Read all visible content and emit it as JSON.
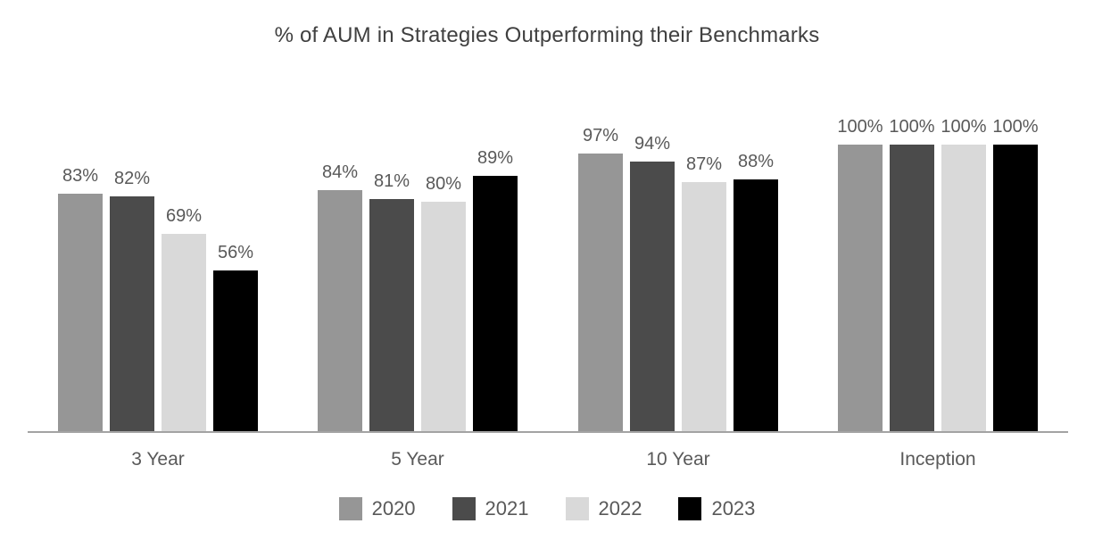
{
  "chart_data": {
    "type": "bar",
    "title": "% of AUM in Strategies Outperforming their Benchmarks",
    "categories": [
      "3 Year",
      "5 Year",
      "10 Year",
      "Inception"
    ],
    "series": [
      {
        "name": "2020",
        "color": "#969696",
        "values": [
          83,
          84,
          97,
          100
        ]
      },
      {
        "name": "2021",
        "color": "#4B4B4B",
        "values": [
          82,
          81,
          94,
          100
        ]
      },
      {
        "name": "2022",
        "color": "#D9D9D9",
        "values": [
          69,
          80,
          87,
          100
        ]
      },
      {
        "name": "2023",
        "color": "#000000",
        "values": [
          56,
          89,
          88,
          100
        ]
      }
    ],
    "value_label_suffix": "%",
    "ylim": [
      0,
      100
    ],
    "grid": false,
    "y_axis_visible": false,
    "legend_position": "bottom",
    "xlabel": "",
    "ylabel": ""
  },
  "colors": {
    "background": "#FFFFFF",
    "title_text": "#404040",
    "label_text": "#595959",
    "axis_line": "#A3A3A3"
  }
}
